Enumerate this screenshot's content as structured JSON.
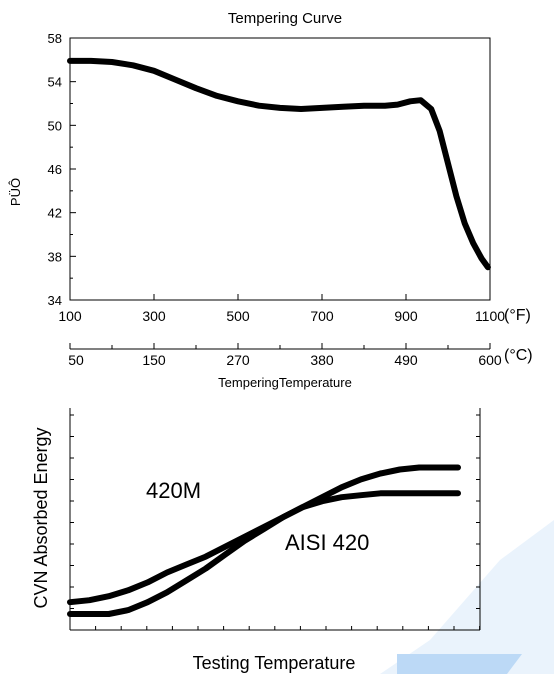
{
  "chart_data": [
    {
      "type": "line",
      "title": "Tempering Curve",
      "ylabel": "PÜÔ",
      "xlabel": "TemperingTemperature",
      "ylim": [
        34,
        58
      ],
      "xlim": [
        100,
        1100
      ],
      "yticks": [
        "34",
        "38",
        "42",
        "46",
        "50",
        "54",
        "58"
      ],
      "xticks_f": [
        "100",
        "300",
        "500",
        "700",
        "900",
        "1100"
      ],
      "xticks_c": [
        "50",
        "150",
        "270",
        "380",
        "490",
        "600"
      ],
      "unit_f": "(°F)",
      "unit_c": "(°C)",
      "grid": false,
      "series": [
        {
          "x": [
            100,
            150,
            200,
            250,
            300,
            350,
            400,
            450,
            500,
            550,
            600,
            650,
            700,
            750,
            800,
            850,
            880,
            910,
            935,
            960,
            980,
            1000,
            1020,
            1040,
            1060,
            1080,
            1095
          ],
          "values": [
            55.9,
            55.9,
            55.8,
            55.5,
            55.0,
            54.2,
            53.4,
            52.7,
            52.2,
            51.8,
            51.6,
            51.5,
            51.6,
            51.7,
            51.8,
            51.8,
            51.9,
            52.2,
            52.3,
            51.5,
            49.5,
            46.5,
            43.5,
            41.0,
            39.2,
            37.8,
            37.0
          ]
        }
      ]
    },
    {
      "type": "line",
      "xlabel": "Testing Temperature",
      "ylabel": "CVN Absorbed Energy",
      "ylim": [
        0,
        100
      ],
      "xlim": [
        0,
        100
      ],
      "grid": false,
      "series": [
        {
          "name": "420M",
          "x": [
            0,
            5,
            10,
            15,
            20,
            25,
            30,
            35,
            40,
            45,
            50,
            55,
            60,
            65,
            70,
            75,
            80,
            85,
            90,
            95,
            100
          ],
          "values": [
            8,
            9,
            11,
            14,
            18,
            23,
            27,
            31,
            36,
            41,
            46,
            51,
            56,
            61,
            66,
            70,
            73,
            75,
            76,
            76,
            76
          ]
        },
        {
          "name": "AISI 420",
          "x": [
            0,
            5,
            10,
            15,
            20,
            25,
            30,
            35,
            40,
            45,
            50,
            55,
            60,
            65,
            70,
            75,
            80,
            85,
            90,
            95,
            100
          ],
          "values": [
            2,
            2,
            2,
            4,
            8,
            13,
            19,
            25,
            32,
            39,
            45,
            51,
            56,
            59,
            61,
            62,
            63,
            63,
            63,
            63,
            63
          ]
        }
      ]
    }
  ]
}
